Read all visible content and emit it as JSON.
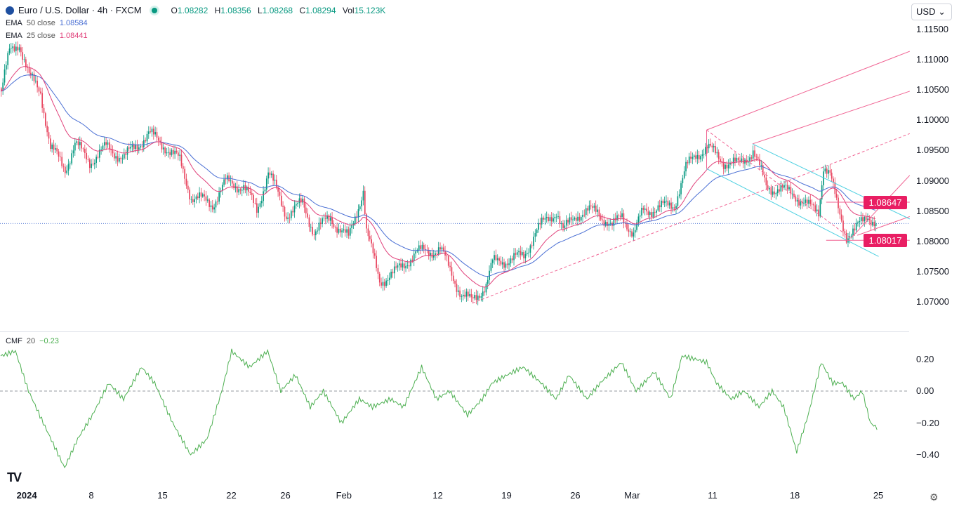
{
  "header": {
    "symbol": "Euro / U.S. Dollar · 4h · FXCM",
    "open_label": "O",
    "open": "1.08282",
    "high_label": "H",
    "high": "1.08356",
    "low_label": "L",
    "low": "1.08268",
    "close_label": "C",
    "close": "1.08294",
    "vol_label": "Vol",
    "vol": "15.123K",
    "currency": "USD"
  },
  "indicators": {
    "ema50": {
      "label": "EMA",
      "params": "50 close",
      "value": "1.08584",
      "color": "#4a6fd4",
      "period": 50
    },
    "ema25": {
      "label": "EMA",
      "params": "25 close",
      "value": "1.08441",
      "color": "#e0407a",
      "period": 25
    },
    "cmf": {
      "label": "CMF",
      "params": "20",
      "value": "−0.23",
      "color": "#4caf50"
    }
  },
  "colors": {
    "up": "#089981",
    "down": "#e8455f",
    "drawing_pink": "#f06292",
    "drawing_cyan": "#4dd0e1",
    "last_price_line": "#5b7fd6"
  },
  "chart_data": [
    {
      "type": "candlestick",
      "title": "Euro / U.S. Dollar · 4h · FXCM",
      "ylim": [
        1.0675,
        1.117
      ],
      "y_ticks": [
        "1.11500",
        "1.11000",
        "1.10500",
        "1.10000",
        "1.09500",
        "1.09000",
        "1.08500",
        "1.08000",
        "1.07500",
        "1.07000"
      ],
      "y_tick_values": [
        1.115,
        1.11,
        1.105,
        1.1,
        1.095,
        1.09,
        1.085,
        1.08,
        1.075,
        1.07
      ],
      "x_ticks": [
        {
          "label": "2024",
          "bar": 14,
          "bold": true
        },
        {
          "label": "8",
          "bar": 58
        },
        {
          "label": "15",
          "bar": 100
        },
        {
          "label": "22",
          "bar": 142
        },
        {
          "label": "26",
          "bar": 175
        },
        {
          "label": "Feb",
          "bar": 209
        },
        {
          "label": "12",
          "bar": 268
        },
        {
          "label": "19",
          "bar": 310
        },
        {
          "label": "26",
          "bar": 352
        },
        {
          "label": "Mar",
          "bar": 385
        },
        {
          "label": "11",
          "bar": 436
        },
        {
          "label": "18",
          "bar": 486
        },
        {
          "label": "25",
          "bar": 537
        }
      ],
      "total_bars": 535,
      "last_price": 1.08294,
      "close_path": [
        [
          0,
          1.1048
        ],
        [
          5,
          1.1112
        ],
        [
          11,
          1.1129
        ],
        [
          17,
          1.1071
        ],
        [
          24,
          1.1048
        ],
        [
          30,
          1.0955
        ],
        [
          39,
          1.092
        ],
        [
          45,
          1.0961
        ],
        [
          54,
          1.0932
        ],
        [
          64,
          1.0955
        ],
        [
          75,
          1.0938
        ],
        [
          90,
          1.0978
        ],
        [
          101,
          1.0955
        ],
        [
          109,
          1.0932
        ],
        [
          116,
          1.0874
        ],
        [
          129,
          1.0862
        ],
        [
          137,
          1.0897
        ],
        [
          148,
          1.0891
        ],
        [
          156,
          1.0851
        ],
        [
          163,
          1.0915
        ],
        [
          174,
          1.0845
        ],
        [
          184,
          1.0862
        ],
        [
          191,
          1.0816
        ],
        [
          201,
          1.0839
        ],
        [
          212,
          1.0804
        ],
        [
          221,
          1.0886
        ],
        [
          223,
          1.0816
        ],
        [
          231,
          1.0735
        ],
        [
          240,
          1.0747
        ],
        [
          253,
          1.0781
        ],
        [
          268,
          1.0787
        ],
        [
          281,
          1.0712
        ],
        [
          287,
          1.07
        ],
        [
          296,
          1.0729
        ],
        [
          300,
          1.0764
        ],
        [
          309,
          1.077
        ],
        [
          319,
          1.0775
        ],
        [
          326,
          1.0816
        ],
        [
          339,
          1.0851
        ],
        [
          343,
          1.0816
        ],
        [
          351,
          1.0845
        ],
        [
          364,
          1.0851
        ],
        [
          373,
          1.0822
        ],
        [
          379,
          1.0845
        ],
        [
          386,
          1.081
        ],
        [
          392,
          1.0851
        ],
        [
          403,
          1.0856
        ],
        [
          411,
          1.0862
        ],
        [
          418,
          1.092
        ],
        [
          424,
          1.0944
        ],
        [
          431,
          1.0955
        ],
        [
          441,
          1.0932
        ],
        [
          450,
          1.0926
        ],
        [
          459,
          1.095
        ],
        [
          467,
          1.0891
        ],
        [
          476,
          1.0885
        ],
        [
          484,
          1.0879
        ],
        [
          493,
          1.0856
        ],
        [
          499,
          1.0851
        ],
        [
          502,
          1.0926
        ],
        [
          506,
          1.0909
        ],
        [
          510,
          1.0862
        ],
        [
          516,
          1.081
        ],
        [
          521,
          1.0816
        ],
        [
          529,
          1.0845
        ],
        [
          534,
          1.08294
        ]
      ],
      "price_tags": [
        {
          "label": "1.08647",
          "value": 1.08647
        },
        {
          "label": "1.08017",
          "value": 1.08017
        }
      ],
      "drawings": [
        {
          "style": "solid",
          "color": "pink",
          "from": [
            431,
            1.0984
          ],
          "to": [
            555,
            1.1114
          ]
        },
        {
          "style": "solid",
          "color": "pink",
          "from": [
            459,
            1.0961
          ],
          "to": [
            555,
            1.1048
          ]
        },
        {
          "style": "dashed",
          "color": "pink",
          "from": [
            288,
            1.0698
          ],
          "to": [
            555,
            1.0978
          ]
        },
        {
          "style": "solid",
          "color": "pink",
          "from": [
            519,
            1.0805
          ],
          "to": [
            555,
            1.0909
          ]
        },
        {
          "style": "solid",
          "color": "pink",
          "from": [
            523,
            1.081
          ],
          "to": [
            555,
            1.0841
          ]
        },
        {
          "style": "dashed",
          "color": "pink",
          "from": [
            431,
            1.0984
          ],
          "to": [
            519,
            1.0805
          ]
        },
        {
          "style": "solid",
          "color": "pink",
          "from": [
            431,
            1.0984
          ],
          "to": [
            431,
            1.092
          ]
        },
        {
          "style": "solid",
          "color": "cyan",
          "from": [
            431,
            1.092
          ],
          "to": [
            536,
            1.0775
          ]
        },
        {
          "style": "solid",
          "color": "cyan",
          "from": [
            459,
            1.0961
          ],
          "to": [
            555,
            1.0837
          ]
        },
        {
          "style": "solid",
          "color": "pink",
          "from": [
            504,
            1.08647
          ],
          "to": [
            555,
            1.08647
          ]
        },
        {
          "style": "solid",
          "color": "pink",
          "from": [
            504,
            1.08017
          ],
          "to": [
            555,
            1.08017
          ]
        }
      ]
    },
    {
      "type": "line",
      "title": "CMF 20",
      "ylim": [
        -0.52,
        0.3
      ],
      "y_ticks": [
        "0.20",
        "0.00",
        "−0.20",
        "−0.40"
      ],
      "y_tick_values": [
        0.2,
        0,
        -0.2,
        -0.4
      ],
      "zero_line": 0,
      "series": [
        [
          0,
          0.22
        ],
        [
          9,
          0.25
        ],
        [
          17,
          0.0
        ],
        [
          26,
          -0.2
        ],
        [
          39,
          -0.48
        ],
        [
          47,
          -0.3
        ],
        [
          56,
          -0.15
        ],
        [
          66,
          0.05
        ],
        [
          75,
          -0.05
        ],
        [
          86,
          0.15
        ],
        [
          94,
          0.05
        ],
        [
          105,
          -0.2
        ],
        [
          116,
          -0.4
        ],
        [
          126,
          -0.3
        ],
        [
          135,
          0.0
        ],
        [
          141,
          0.25
        ],
        [
          152,
          0.15
        ],
        [
          163,
          0.25
        ],
        [
          171,
          0.0
        ],
        [
          180,
          0.1
        ],
        [
          189,
          -0.1
        ],
        [
          197,
          0.0
        ],
        [
          208,
          -0.2
        ],
        [
          219,
          -0.05
        ],
        [
          227,
          -0.1
        ],
        [
          238,
          -0.05
        ],
        [
          246,
          -0.1
        ],
        [
          257,
          0.15
        ],
        [
          266,
          -0.05
        ],
        [
          274,
          0.0
        ],
        [
          285,
          -0.15
        ],
        [
          294,
          -0.05
        ],
        [
          300,
          0.05
        ],
        [
          309,
          0.1
        ],
        [
          319,
          0.15
        ],
        [
          330,
          0.05
        ],
        [
          339,
          -0.05
        ],
        [
          347,
          0.1
        ],
        [
          358,
          -0.05
        ],
        [
          366,
          0.05
        ],
        [
          379,
          0.18
        ],
        [
          388,
          0.0
        ],
        [
          399,
          0.12
        ],
        [
          409,
          -0.05
        ],
        [
          416,
          0.22
        ],
        [
          424,
          0.2
        ],
        [
          431,
          0.18
        ],
        [
          437,
          0.05
        ],
        [
          446,
          -0.05
        ],
        [
          454,
          0.0
        ],
        [
          463,
          -0.1
        ],
        [
          471,
          0.0
        ],
        [
          478,
          -0.1
        ],
        [
          486,
          -0.38
        ],
        [
          493,
          -0.15
        ],
        [
          501,
          0.18
        ],
        [
          508,
          0.05
        ],
        [
          514,
          0.05
        ],
        [
          521,
          -0.05
        ],
        [
          526,
          0.0
        ],
        [
          531,
          -0.2
        ],
        [
          535,
          -0.23
        ]
      ]
    }
  ]
}
